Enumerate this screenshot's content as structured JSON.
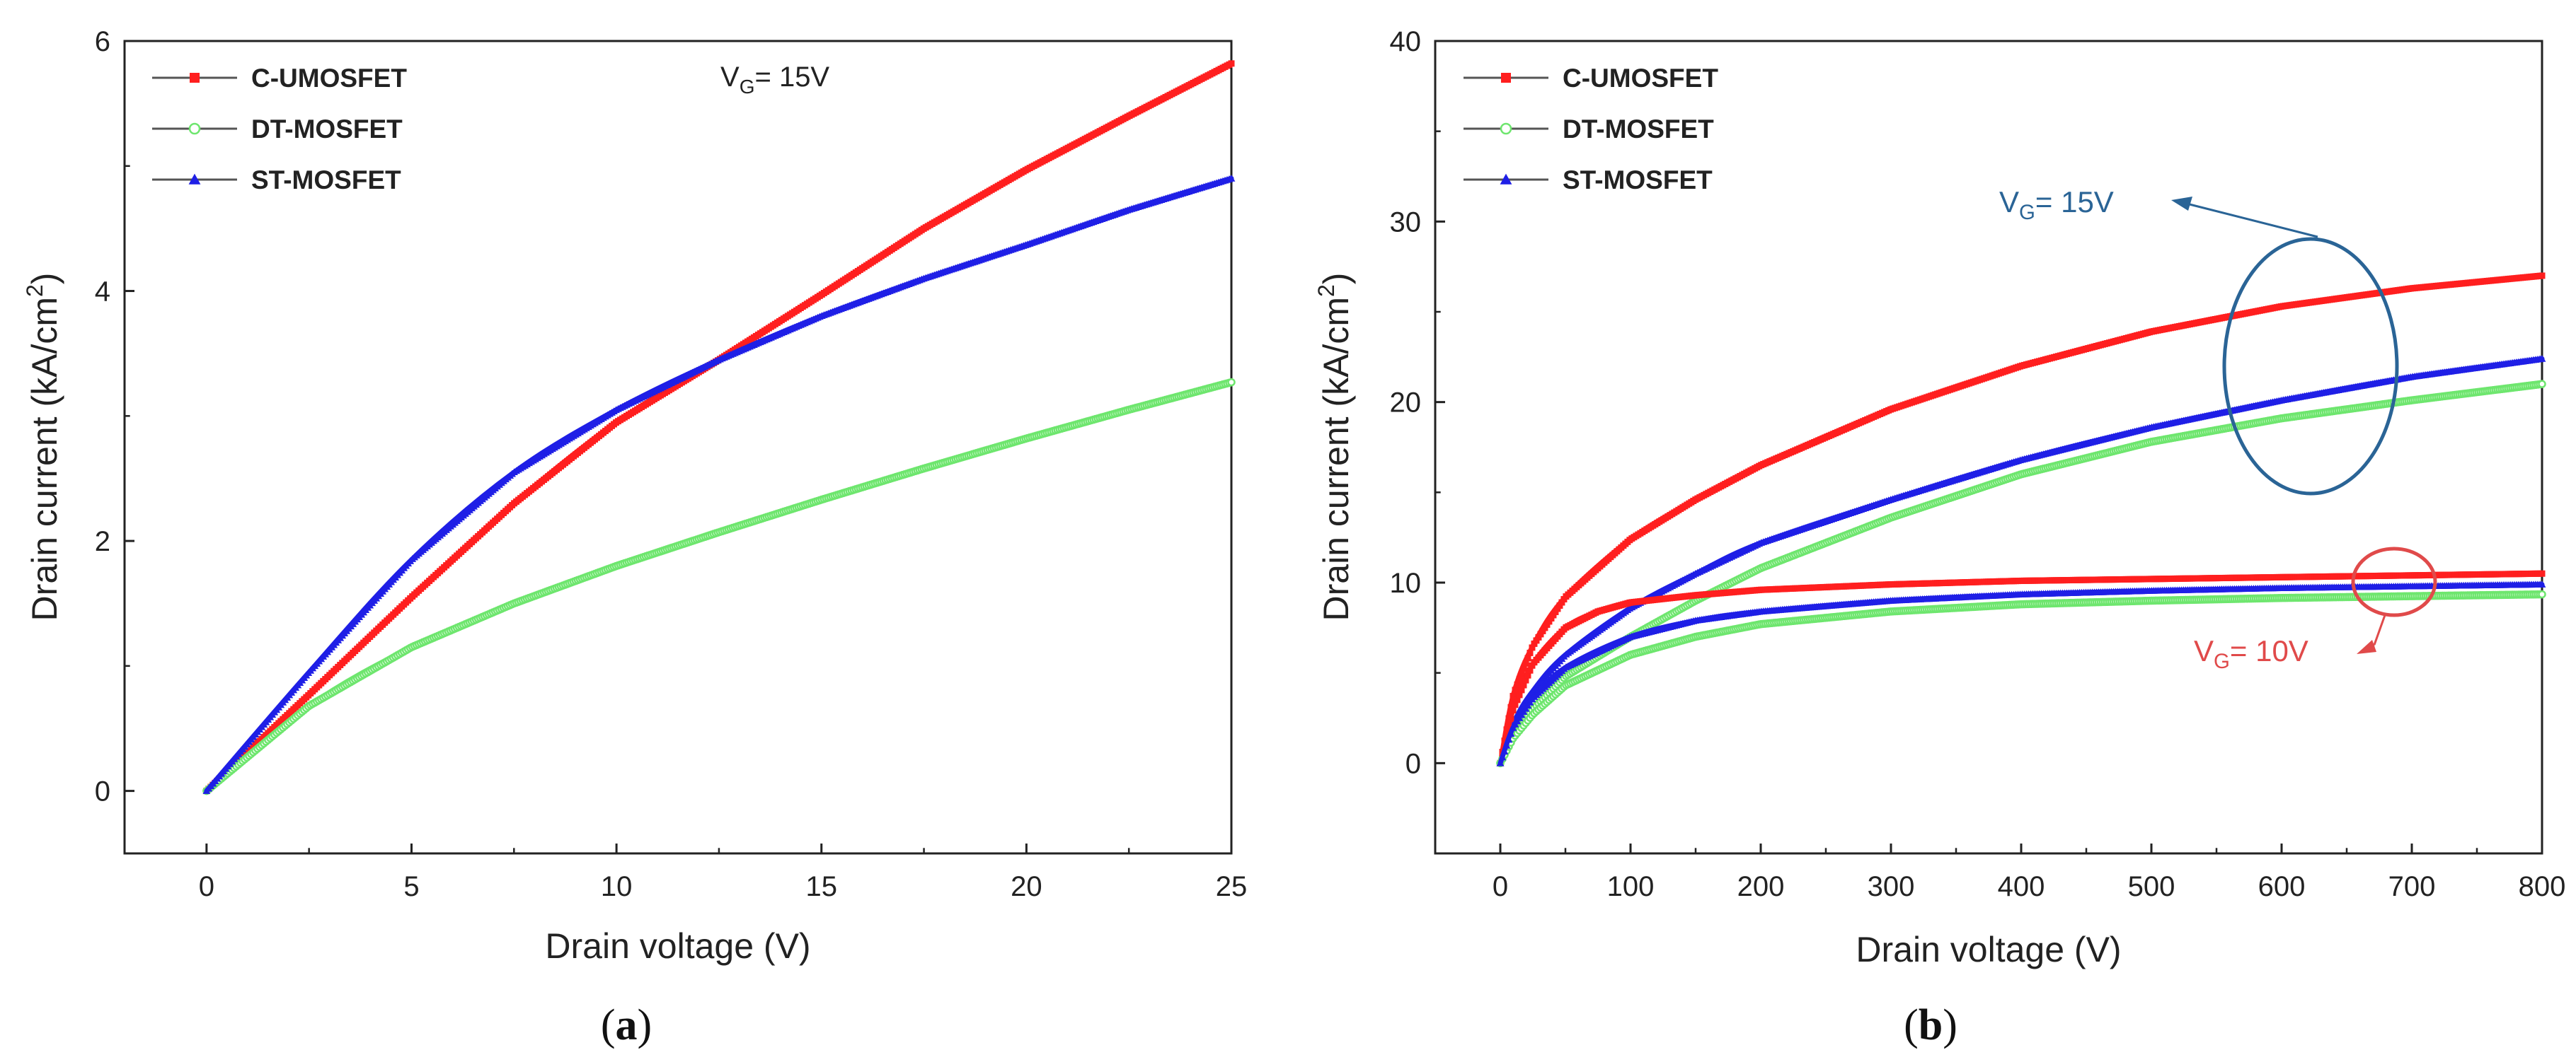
{
  "chart_data": [
    {
      "panel": "a",
      "type": "line",
      "panel_label": {
        "open": "(",
        "letter": "a",
        "close": ")"
      },
      "xlabel": "Drain voltage (V)",
      "ylabel": "Drain current (kA/cm",
      "ylabel_sup": "2",
      "ylabel_close": ")",
      "xlim": [
        -2,
        25
      ],
      "ylim": [
        -0.5,
        6
      ],
      "xticks": [
        0,
        5,
        10,
        15,
        20,
        25
      ],
      "yticks": [
        0,
        2,
        4,
        6
      ],
      "xtick_labels": [
        "0",
        "5",
        "10",
        "15",
        "20",
        "25"
      ],
      "ytick_labels": [
        "0",
        "2",
        "4",
        "6"
      ],
      "legend": {
        "position": "top-left",
        "entries": [
          "C-UMOSFET",
          "DT-MOSFET",
          "ST-MOSFET"
        ]
      },
      "annotations": [
        {
          "text_main": "V",
          "text_sub": "G",
          "text_rest": "= 15V",
          "color": "#222222"
        }
      ],
      "series": [
        {
          "name": "C-UMOSFET",
          "color": "#ff1f1f",
          "marker": "square",
          "x": [
            0,
            2.5,
            5,
            7.5,
            10,
            12.5,
            15,
            17.5,
            20,
            22.5,
            25
          ],
          "y": [
            0,
            0.77,
            1.55,
            2.3,
            2.95,
            3.45,
            3.97,
            4.5,
            4.97,
            5.4,
            5.82
          ]
        },
        {
          "name": "DT-MOSFET",
          "color": "#6ee66e",
          "marker": "circle",
          "x": [
            0,
            2.5,
            5,
            7.5,
            10,
            12.5,
            15,
            17.5,
            20,
            22.5,
            25
          ],
          "y": [
            0,
            0.68,
            1.15,
            1.5,
            1.8,
            2.07,
            2.33,
            2.58,
            2.82,
            3.05,
            3.27
          ]
        },
        {
          "name": "ST-MOSFET",
          "color": "#1f1fe6",
          "marker": "triangle",
          "x": [
            0,
            2.5,
            5,
            7.5,
            10,
            12.5,
            15,
            17.5,
            20,
            22.5,
            25
          ],
          "y": [
            0,
            0.95,
            1.85,
            2.55,
            3.05,
            3.45,
            3.8,
            4.1,
            4.37,
            4.65,
            4.9
          ]
        }
      ]
    },
    {
      "panel": "b",
      "type": "line",
      "panel_label": {
        "open": "(",
        "letter": "b",
        "close": ")"
      },
      "xlabel": "Drain voltage (V)",
      "ylabel": "Drain current (kA/cm",
      "ylabel_sup": "2",
      "ylabel_close": ")",
      "xlim": [
        -50,
        800
      ],
      "ylim": [
        -5,
        40
      ],
      "xticks": [
        0,
        100,
        200,
        300,
        400,
        500,
        600,
        700,
        800
      ],
      "yticks": [
        0,
        10,
        20,
        30,
        40
      ],
      "xtick_labels": [
        "0",
        "100",
        "200",
        "300",
        "400",
        "500",
        "600",
        "700",
        "800"
      ],
      "ytick_labels": [
        "0",
        "10",
        "20",
        "30",
        "40"
      ],
      "legend": {
        "position": "top-left",
        "entries": [
          "C-UMOSFET",
          "DT-MOSFET",
          "ST-MOSFET"
        ]
      },
      "annotations": [
        {
          "text_main": "V",
          "text_sub": "G",
          "text_rest": "= 15V",
          "color": "#2a6496",
          "target_group": "VG=15V curves"
        },
        {
          "text_main": "V",
          "text_sub": "G",
          "text_rest": "= 10V",
          "color": "#e04a4a",
          "target_group": "VG=10V curves"
        }
      ],
      "series": [
        {
          "name": "C-UMOSFET",
          "vg": "15V",
          "color": "#ff1f1f",
          "marker": "square",
          "x": [
            0,
            10,
            25,
            50,
            100,
            150,
            200,
            300,
            400,
            500,
            600,
            700,
            800
          ],
          "y": [
            0,
            3.8,
            6.5,
            9.2,
            12.4,
            14.6,
            16.5,
            19.6,
            22,
            23.9,
            25.3,
            26.3,
            27
          ]
        },
        {
          "name": "DT-MOSFET",
          "vg": "15V",
          "color": "#6ee66e",
          "marker": "circle",
          "x": [
            0,
            10,
            25,
            50,
            100,
            150,
            200,
            300,
            400,
            500,
            600,
            700,
            800
          ],
          "y": [
            0,
            1.5,
            3,
            4.8,
            7,
            9,
            10.8,
            13.6,
            16,
            17.8,
            19.1,
            20.1,
            21
          ]
        },
        {
          "name": "ST-MOSFET",
          "vg": "15V",
          "color": "#1f1fe6",
          "marker": "triangle",
          "x": [
            0,
            10,
            25,
            50,
            100,
            150,
            200,
            300,
            400,
            500,
            600,
            700,
            800
          ],
          "y": [
            0,
            2.2,
            4,
            6,
            8.6,
            10.5,
            12.2,
            14.6,
            16.8,
            18.6,
            20.1,
            21.4,
            22.4
          ]
        },
        {
          "name": "C-UMOSFET",
          "vg": "10V",
          "color": "#ff1f1f",
          "marker": "square",
          "x": [
            0,
            10,
            25,
            50,
            75,
            100,
            150,
            200,
            300,
            400,
            500,
            600,
            700,
            800
          ],
          "y": [
            0,
            3,
            5.5,
            7.5,
            8.4,
            8.9,
            9.3,
            9.6,
            9.9,
            10.1,
            10.2,
            10.3,
            10.4,
            10.5
          ]
        },
        {
          "name": "DT-MOSFET",
          "vg": "10V",
          "color": "#6ee66e",
          "marker": "circle",
          "x": [
            0,
            10,
            25,
            50,
            100,
            150,
            200,
            300,
            400,
            500,
            600,
            700,
            800
          ],
          "y": [
            0,
            1.4,
            2.7,
            4.3,
            6,
            7,
            7.7,
            8.4,
            8.8,
            9,
            9.15,
            9.25,
            9.35
          ]
        },
        {
          "name": "ST-MOSFET",
          "vg": "10V",
          "color": "#1f1fe6",
          "marker": "triangle",
          "x": [
            0,
            10,
            25,
            50,
            100,
            150,
            200,
            300,
            400,
            500,
            600,
            700,
            800
          ],
          "y": [
            0,
            2,
            3.6,
            5.3,
            7,
            7.9,
            8.4,
            9,
            9.35,
            9.55,
            9.7,
            9.8,
            9.9
          ]
        }
      ]
    }
  ]
}
